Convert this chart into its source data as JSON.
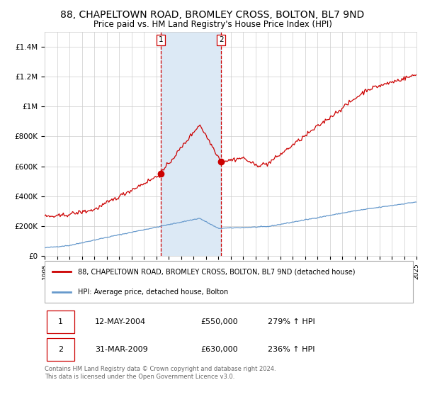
{
  "title": "88, CHAPELTOWN ROAD, BROMLEY CROSS, BOLTON, BL7 9ND",
  "subtitle": "Price paid vs. HM Land Registry's House Price Index (HPI)",
  "title_fontsize": 10,
  "subtitle_fontsize": 8.5,
  "x_start_year": 1995,
  "x_end_year": 2025,
  "ylim": [
    0,
    1500000
  ],
  "yticks": [
    0,
    200000,
    400000,
    600000,
    800000,
    1000000,
    1200000,
    1400000
  ],
  "ytick_labels": [
    "£0",
    "£200K",
    "£400K",
    "£600K",
    "£800K",
    "£1M",
    "£1.2M",
    "£1.4M"
  ],
  "sale1_date": 2004.36,
  "sale1_price": 550000,
  "sale1_label": "1",
  "sale2_date": 2009.25,
  "sale2_price": 630000,
  "sale2_label": "2",
  "shade_color": "#dce9f5",
  "red_line_color": "#cc0000",
  "blue_line_color": "#6699cc",
  "grid_color": "#cccccc",
  "background_color": "#ffffff",
  "legend_line1": "88, CHAPELTOWN ROAD, BROMLEY CROSS, BOLTON, BL7 9ND (detached house)",
  "legend_line2": "HPI: Average price, detached house, Bolton",
  "table_row1": [
    "1",
    "12-MAY-2004",
    "£550,000",
    "279% ↑ HPI"
  ],
  "table_row2": [
    "2",
    "31-MAR-2009",
    "£630,000",
    "236% ↑ HPI"
  ],
  "footnote": "Contains HM Land Registry data © Crown copyright and database right 2024.\nThis data is licensed under the Open Government Licence v3.0."
}
